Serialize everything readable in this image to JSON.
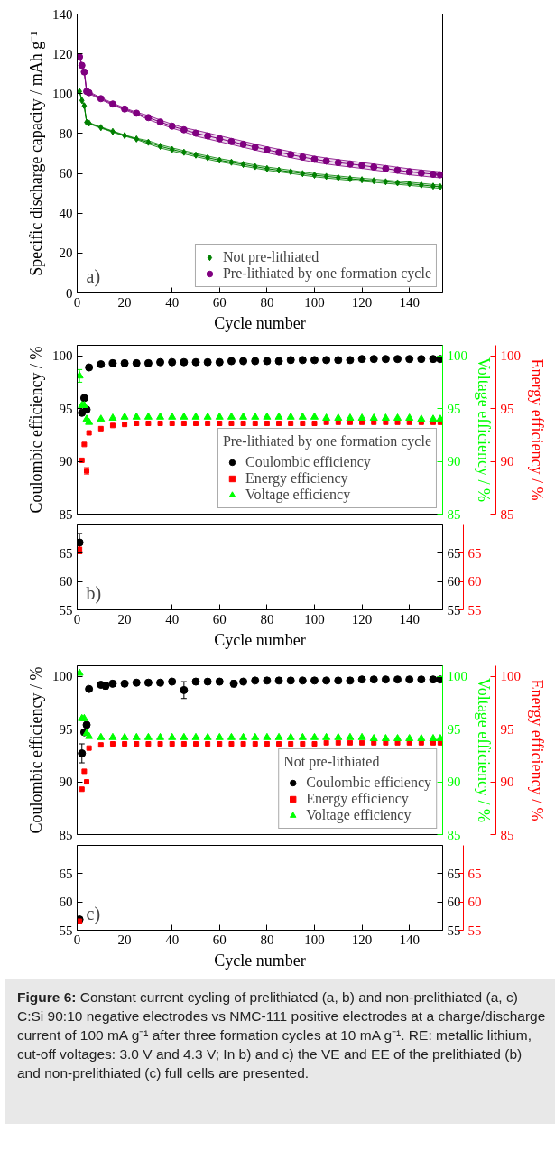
{
  "chart_data": [
    {
      "type": "line",
      "xlabel": "Cycle number",
      "ylabel": "Specific discharge capacity / mAh g⁻¹",
      "xlim": [
        0,
        154
      ],
      "ylim": [
        0,
        140
      ],
      "xticks": [
        0,
        20,
        40,
        60,
        80,
        100,
        120,
        140
      ],
      "yticks": [
        0,
        20,
        40,
        60,
        80,
        100,
        120,
        140
      ],
      "legend": "bottom right",
      "annotations": [
        "a)"
      ],
      "series": [
        {
          "name": "Not pre-lithiated",
          "color": "#008000",
          "marker": "diamond",
          "x": [
            1,
            2,
            3,
            4,
            5,
            10,
            15,
            20,
            25,
            30,
            35,
            40,
            45,
            50,
            55,
            60,
            65,
            70,
            75,
            80,
            85,
            90,
            95,
            100,
            105,
            110,
            115,
            120,
            125,
            130,
            135,
            140,
            145,
            150,
            153
          ],
          "values": [
            101.1,
            96.6,
            93.9,
            85.6,
            85.2,
            83.0,
            81.0,
            79.0,
            77.3,
            75.6,
            73.6,
            72.0,
            70.6,
            69.2,
            67.9,
            66.6,
            65.6,
            64.5,
            63.4,
            62.4,
            61.6,
            60.8,
            59.9,
            59.1,
            58.5,
            57.9,
            57.3,
            56.8,
            56.3,
            55.8,
            55.3,
            54.8,
            54.2,
            53.6,
            53.3
          ],
          "lower": [
            100.8,
            96.3,
            93.6,
            85.3,
            84.9,
            82.7,
            80.7,
            78.7,
            77.0,
            74.8,
            72.8,
            71.2,
            69.8,
            68.4,
            67.1,
            65.8,
            64.8,
            63.7,
            62.6,
            61.6,
            60.8,
            60.0,
            59.1,
            58.3,
            57.7,
            57.1,
            56.5,
            56.0,
            55.5,
            55.0,
            54.5,
            54.0,
            53.4,
            52.8,
            52.5
          ],
          "upper": [
            101.4,
            96.9,
            94.2,
            85.9,
            85.5,
            83.3,
            81.3,
            79.3,
            77.6,
            76.4,
            74.4,
            72.8,
            71.4,
            70.0,
            68.7,
            67.4,
            66.4,
            65.3,
            64.2,
            63.2,
            62.4,
            61.6,
            60.7,
            59.9,
            59.3,
            58.7,
            58.1,
            57.6,
            57.1,
            56.6,
            56.1,
            55.6,
            55.0,
            54.4,
            54.1
          ]
        },
        {
          "name": "Pre-lithiated by one formation cycle",
          "color": "#800080",
          "marker": "circle",
          "x": [
            1,
            2,
            3,
            4,
            5,
            10,
            15,
            20,
            25,
            30,
            35,
            40,
            45,
            50,
            55,
            60,
            65,
            70,
            75,
            80,
            85,
            90,
            95,
            100,
            105,
            110,
            115,
            120,
            125,
            130,
            135,
            140,
            145,
            150,
            153
          ],
          "values": [
            118.5,
            114.2,
            110.9,
            101.1,
            100.5,
            97.5,
            94.8,
            92.3,
            90.2,
            88.0,
            85.8,
            83.7,
            81.9,
            80.2,
            78.8,
            77.4,
            76.0,
            74.6,
            73.2,
            71.8,
            70.6,
            69.4,
            68.2,
            67.1,
            66.2,
            65.4,
            64.7,
            64.0,
            63.2,
            62.4,
            61.6,
            60.8,
            60.2,
            59.6,
            59.3
          ],
          "lower": [
            118.0,
            113.7,
            110.4,
            100.6,
            100.0,
            97.0,
            94.3,
            91.8,
            89.7,
            87.0,
            84.8,
            82.7,
            80.9,
            78.7,
            77.3,
            75.9,
            74.5,
            73.1,
            71.7,
            70.3,
            69.1,
            67.9,
            66.7,
            65.6,
            64.7,
            63.9,
            63.2,
            62.5,
            61.7,
            60.9,
            60.1,
            59.3,
            58.7,
            58.1,
            57.8
          ],
          "upper": [
            119.0,
            114.7,
            111.4,
            101.6,
            101.0,
            98.0,
            95.3,
            92.8,
            90.7,
            89.0,
            86.8,
            84.7,
            82.9,
            81.7,
            80.3,
            78.9,
            77.5,
            76.1,
            74.7,
            73.3,
            72.1,
            70.9,
            69.7,
            68.6,
            67.7,
            66.9,
            66.2,
            65.5,
            64.7,
            63.9,
            63.1,
            62.3,
            61.7,
            61.1,
            60.8
          ]
        }
      ]
    },
    {
      "type": "scatter",
      "ylabel": "Coulombic efficiency / %",
      "y2label": "Voltage efficiency / %",
      "y3label": "Energy efficiency / %",
      "xlim": [
        0,
        154
      ],
      "ylim": [
        85,
        101
      ],
      "yticks": [
        85,
        90,
        95,
        100
      ],
      "y2lim": [
        85,
        101
      ],
      "y2ticks": [
        85,
        90,
        95,
        100
      ],
      "y3lim": [
        85,
        101
      ],
      "y3ticks": [
        85,
        90,
        95,
        100
      ],
      "tick_labels": "y",
      "legend": "bottom right",
      "legend_title": "Pre-lithiated by one formation cycle",
      "series": [
        {
          "name": "Coulombic efficiency",
          "color": "#000000",
          "marker": "circle",
          "x": [
            2,
            3,
            4,
            5,
            10,
            15,
            20,
            25,
            30,
            35,
            40,
            45,
            50,
            55,
            60,
            65,
            70,
            75,
            80,
            85,
            90,
            95,
            100,
            105,
            110,
            115,
            120,
            125,
            130,
            135,
            140,
            145,
            150,
            153
          ],
          "values": [
            94.6,
            96.0,
            94.9,
            98.9,
            99.2,
            99.3,
            99.3,
            99.3,
            99.3,
            99.4,
            99.4,
            99.4,
            99.4,
            99.4,
            99.4,
            99.5,
            99.5,
            99.5,
            99.5,
            99.5,
            99.6,
            99.6,
            99.6,
            99.6,
            99.6,
            99.6,
            99.7,
            99.7,
            99.7,
            99.7,
            99.7,
            99.7,
            99.7,
            99.7
          ]
        },
        {
          "name": "Energy efficiency",
          "color": "#ff0000",
          "marker": "square",
          "axis": "y3",
          "x": [
            2,
            3,
            4,
            5,
            10,
            15,
            20,
            25,
            30,
            35,
            40,
            45,
            50,
            55,
            60,
            65,
            70,
            75,
            80,
            85,
            90,
            95,
            100,
            105,
            110,
            115,
            120,
            125,
            130,
            135,
            140,
            145,
            150,
            153
          ],
          "values": [
            90.1,
            91.6,
            89.1,
            92.7,
            93.1,
            93.4,
            93.5,
            93.6,
            93.6,
            93.6,
            93.6,
            93.6,
            93.6,
            93.6,
            93.6,
            93.6,
            93.6,
            93.6,
            93.6,
            93.6,
            93.6,
            93.6,
            93.6,
            93.7,
            93.7,
            93.7,
            93.7,
            93.7,
            93.7,
            93.7,
            93.7,
            93.7,
            93.7,
            93.7
          ],
          "errors": [
            null,
            null,
            0.3,
            null,
            null,
            null,
            null,
            null,
            null,
            null,
            null,
            null,
            null,
            null,
            null,
            null,
            null,
            null,
            null,
            null,
            null,
            null,
            null,
            null,
            null,
            null,
            null,
            null,
            null,
            null,
            null,
            null,
            null,
            null
          ]
        },
        {
          "name": "Voltage efficiency",
          "color": "#00ff00",
          "marker": "triangle",
          "axis": "y2",
          "x": [
            1,
            2,
            3,
            4,
            5,
            10,
            15,
            20,
            25,
            30,
            35,
            40,
            45,
            50,
            55,
            60,
            65,
            70,
            75,
            80,
            85,
            90,
            95,
            100,
            105,
            110,
            115,
            120,
            125,
            130,
            135,
            140,
            145,
            150,
            153
          ],
          "values": [
            98.1,
            95.3,
            95.3,
            94.0,
            93.7,
            94.0,
            94.1,
            94.2,
            94.2,
            94.2,
            94.2,
            94.2,
            94.2,
            94.2,
            94.2,
            94.2,
            94.2,
            94.2,
            94.2,
            94.2,
            94.2,
            94.2,
            94.2,
            94.2,
            94.1,
            94.1,
            94.1,
            94.1,
            94.1,
            94.1,
            94.1,
            94.1,
            94.0,
            94.0,
            94.0
          ],
          "errors": [
            0.6,
            null,
            null,
            null,
            null,
            null,
            null,
            null,
            null,
            null,
            null,
            null,
            null,
            null,
            null,
            null,
            null,
            null,
            null,
            null,
            null,
            null,
            null,
            null,
            null,
            null,
            null,
            null,
            null,
            null,
            null,
            null,
            null,
            null,
            null
          ]
        }
      ]
    },
    {
      "type": "scatter",
      "xlabel": "Cycle number",
      "xlim": [
        0,
        154
      ],
      "ylim": [
        55,
        70
      ],
      "xticks": [
        0,
        20,
        40,
        60,
        80,
        100,
        120,
        140
      ],
      "yticks": [
        55,
        60,
        65
      ],
      "y2lim": [
        55,
        70
      ],
      "y2ticks": [
        55,
        60,
        65
      ],
      "y3lim": [
        55,
        70
      ],
      "y3ticks": [
        55,
        60,
        65
      ],
      "annotations": [
        "b)"
      ],
      "series": [
        {
          "color": "#000000",
          "marker": "circle",
          "x": [
            1
          ],
          "values": [
            66.9
          ],
          "errors": [
            1.6
          ]
        },
        {
          "color": "#ff0000",
          "marker": "square",
          "axis": "y3",
          "x": [
            1
          ],
          "values": [
            65.7
          ],
          "errors": [
            0.8
          ]
        }
      ]
    },
    {
      "type": "scatter",
      "ylabel": "Coulombic efficiency / %",
      "y2label": "Voltage efficiency / %",
      "y3label": "Energy efficiency / %",
      "xlim": [
        0,
        154
      ],
      "ylim": [
        85,
        101
      ],
      "yticks": [
        85,
        90,
        95,
        100
      ],
      "y2lim": [
        85,
        101
      ],
      "y2ticks": [
        85,
        90,
        95,
        100
      ],
      "y3lim": [
        85,
        101
      ],
      "y3ticks": [
        85,
        90,
        95,
        100
      ],
      "tick_labels": "y",
      "legend": "bottom right",
      "legend_title": "Not pre-lithiated",
      "series": [
        {
          "name": "Coulombic efficiency",
          "color": "#000000",
          "marker": "circle",
          "x": [
            2,
            3,
            4,
            5,
            10,
            12,
            15,
            20,
            25,
            30,
            35,
            40,
            45,
            50,
            55,
            60,
            66,
            70,
            75,
            80,
            85,
            90,
            95,
            100,
            105,
            110,
            115,
            120,
            125,
            130,
            135,
            140,
            145,
            150,
            153
          ],
          "values": [
            92.7,
            94.7,
            95.4,
            98.8,
            99.2,
            99.1,
            99.3,
            99.3,
            99.4,
            99.4,
            99.4,
            99.5,
            98.7,
            99.5,
            99.5,
            99.5,
            99.3,
            99.5,
            99.6,
            99.6,
            99.6,
            99.6,
            99.6,
            99.6,
            99.6,
            99.6,
            99.6,
            99.7,
            99.7,
            99.7,
            99.7,
            99.7,
            99.7,
            99.7,
            99.7
          ],
          "errors": [
            0.9,
            null,
            null,
            null,
            null,
            0.3,
            null,
            null,
            null,
            null,
            null,
            null,
            0.8,
            null,
            null,
            null,
            0.3,
            null,
            null,
            null,
            null,
            null,
            null,
            null,
            null,
            null,
            null,
            null,
            null,
            null,
            null,
            null,
            null,
            null,
            null
          ]
        },
        {
          "name": "Energy efficiency",
          "color": "#ff0000",
          "marker": "square",
          "axis": "y3",
          "x": [
            2,
            3,
            4,
            5,
            10,
            15,
            20,
            25,
            30,
            35,
            40,
            45,
            50,
            55,
            60,
            65,
            70,
            75,
            80,
            85,
            90,
            95,
            100,
            105,
            110,
            115,
            120,
            125,
            130,
            135,
            140,
            145,
            150,
            153
          ],
          "values": [
            89.3,
            91.0,
            90.0,
            93.2,
            93.5,
            93.6,
            93.6,
            93.6,
            93.6,
            93.6,
            93.6,
            93.6,
            93.6,
            93.6,
            93.6,
            93.6,
            93.6,
            93.6,
            93.6,
            93.6,
            93.6,
            93.6,
            93.6,
            93.7,
            93.7,
            93.7,
            93.7,
            93.7,
            93.7,
            93.7,
            93.7,
            93.7,
            93.7,
            93.7
          ]
        },
        {
          "name": "Voltage efficiency",
          "color": "#00ff00",
          "marker": "triangle",
          "axis": "y2",
          "x": [
            1,
            2,
            3,
            4,
            5,
            10,
            15,
            20,
            25,
            30,
            35,
            40,
            45,
            50,
            55,
            60,
            65,
            70,
            75,
            80,
            85,
            90,
            95,
            100,
            105,
            110,
            115,
            120,
            125,
            130,
            135,
            140,
            145,
            150,
            153
          ],
          "values": [
            100.3,
            96.0,
            96.0,
            94.6,
            94.3,
            94.2,
            94.2,
            94.2,
            94.2,
            94.2,
            94.2,
            94.2,
            94.2,
            94.2,
            94.2,
            94.2,
            94.2,
            94.2,
            94.2,
            94.2,
            94.2,
            94.2,
            94.2,
            94.2,
            94.2,
            94.2,
            94.2,
            94.2,
            94.1,
            94.1,
            94.1,
            94.1,
            94.1,
            94.1,
            94.1
          ]
        }
      ]
    },
    {
      "type": "scatter",
      "xlabel": "Cycle number",
      "xlim": [
        0,
        154
      ],
      "ylim": [
        55,
        70
      ],
      "xticks": [
        0,
        20,
        40,
        60,
        80,
        100,
        120,
        140
      ],
      "yticks": [
        55,
        60,
        65
      ],
      "y2lim": [
        55,
        70
      ],
      "y2ticks": [
        55,
        60,
        65
      ],
      "y3lim": [
        55,
        70
      ],
      "y3ticks": [
        55,
        60,
        65
      ],
      "annotations": [
        "c)",
        "Figure 6: Constant current cycling of prelithiated (a, b) and non-prelithiated (a, c) C:Si 90:10 negative electrodes vs NMC-111 positive electrodes at a charge/discharge current of 100 mA g⁻¹ after three formation cycles at 10 mA g⁻¹. RE: metallic lithium, cut-off voltages: 3.0 V and 4.3 V; In b) and c) the VE and EE of the prelithiated (b) and non-prelithiated (c) full cells are presented."
      ],
      "series": [
        {
          "color": "#000000",
          "marker": "circle",
          "x": [
            1
          ],
          "values": [
            56.9
          ],
          "errors": [
            0.3
          ]
        },
        {
          "color": "#ff0000",
          "marker": "square",
          "axis": "y3",
          "x": [
            1
          ],
          "values": [
            56.6
          ]
        }
      ]
    }
  ]
}
